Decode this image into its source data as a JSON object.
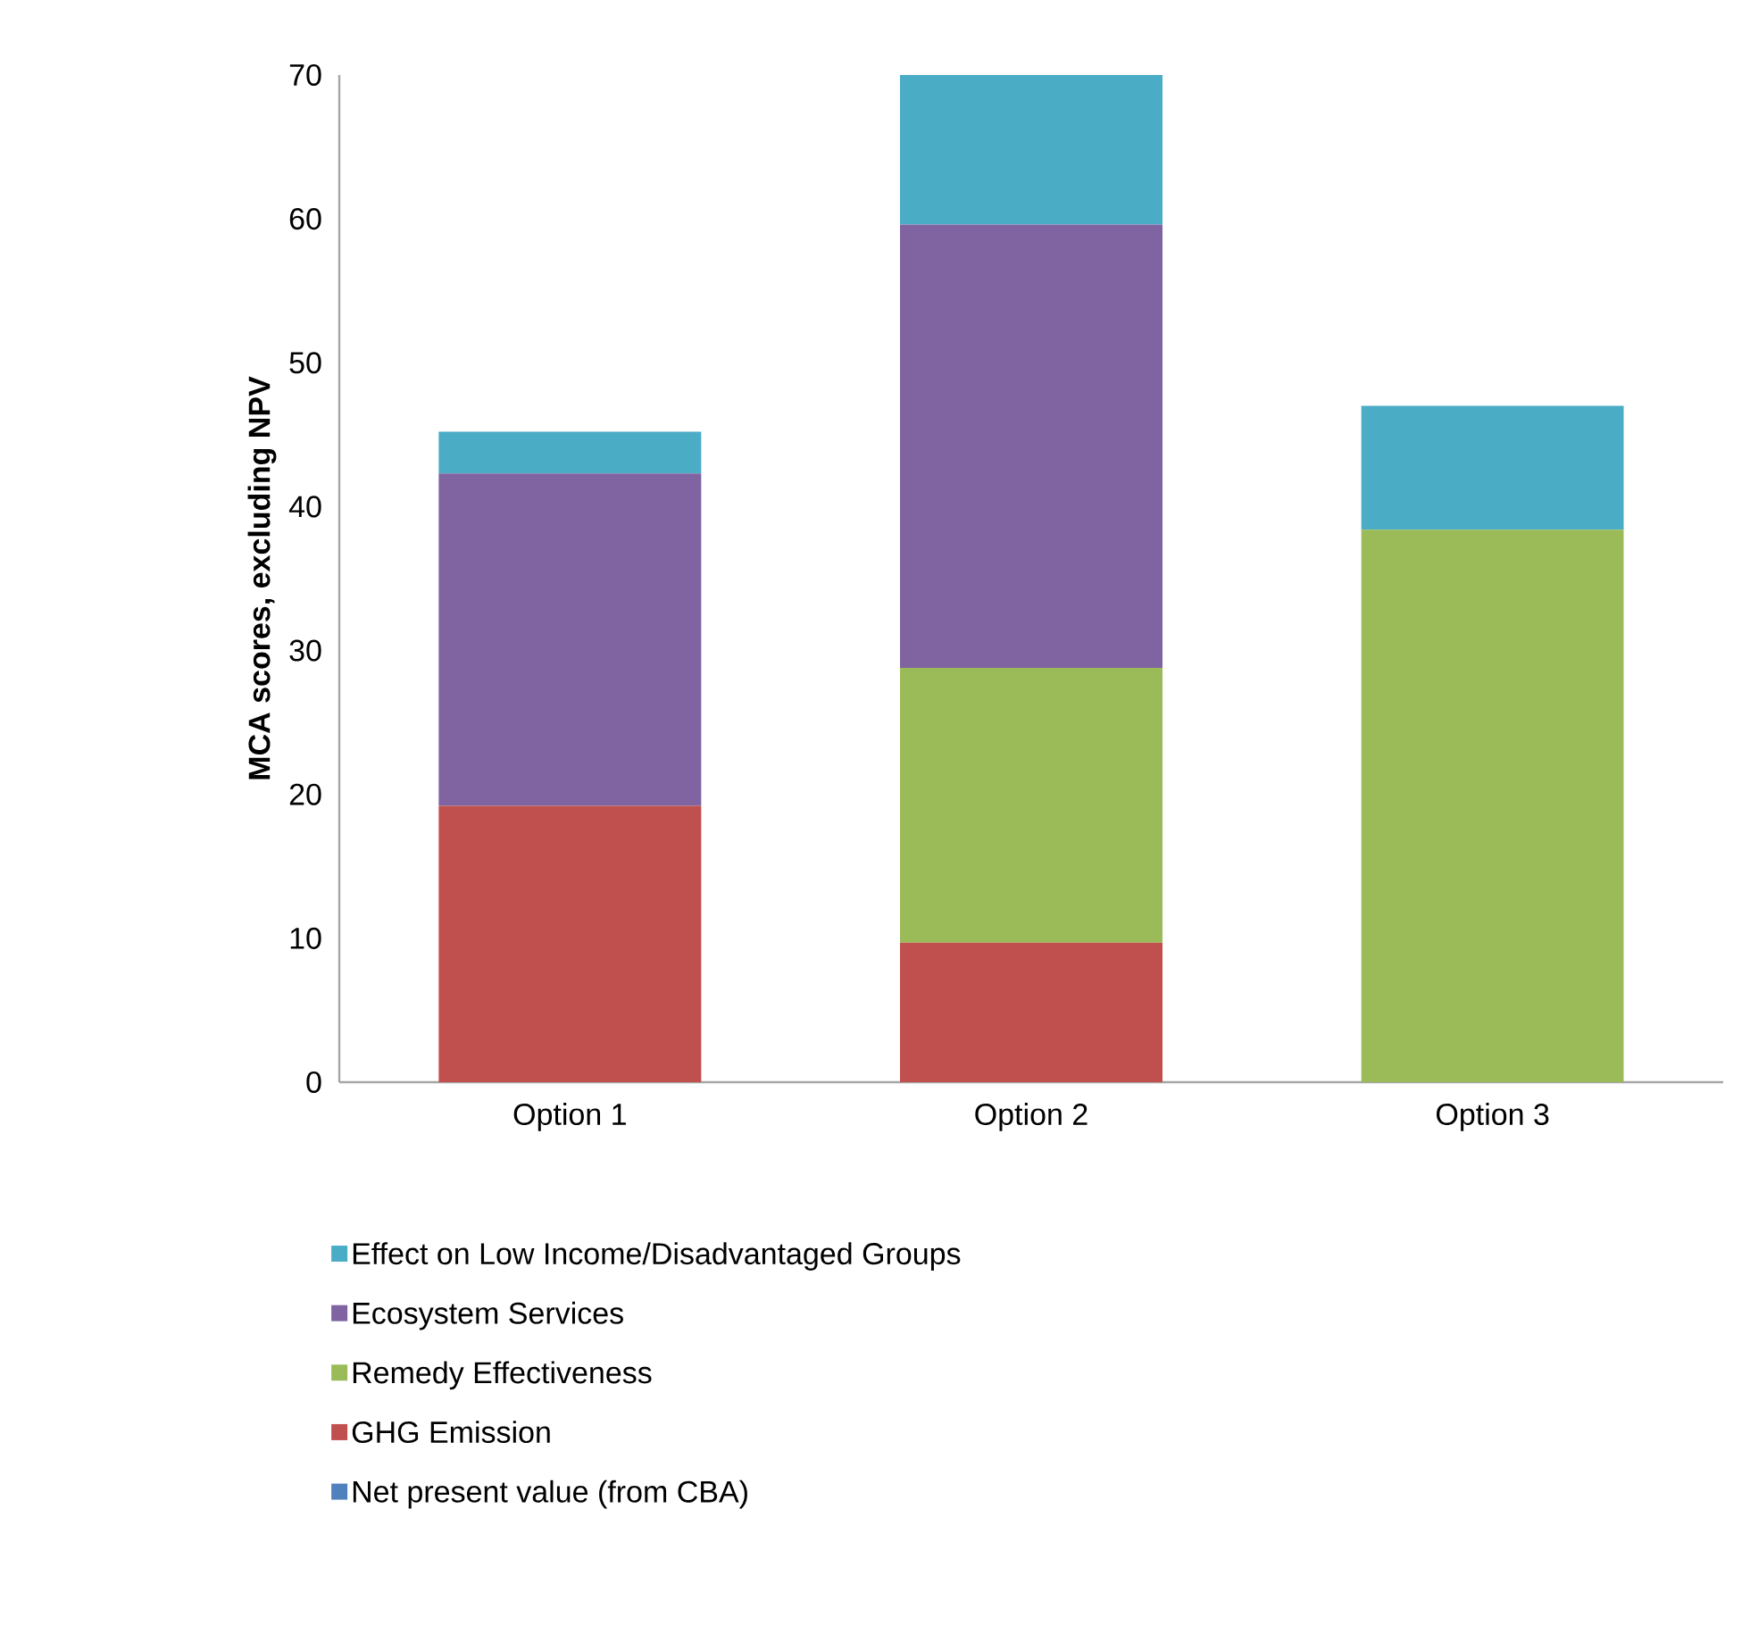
{
  "chart_data": {
    "type": "bar",
    "stacked": true,
    "ylabel": "MCA scores, excluding NPV",
    "categories": [
      "Option 1",
      "Option 2",
      "Option 3"
    ],
    "ylim": [
      0,
      70
    ],
    "yticks": [
      0,
      10,
      20,
      30,
      40,
      50,
      60,
      70
    ],
    "grid": false,
    "legend": "bottom",
    "series": [
      {
        "name": "Net present value (from CBA)",
        "color": "#4f81bd",
        "values": [
          0,
          0,
          0
        ]
      },
      {
        "name": "GHG Emission",
        "color": "#c0504d",
        "values": [
          19.2,
          9.7,
          0
        ]
      },
      {
        "name": "Remedy Effectiveness",
        "color": "#9bbb59",
        "values": [
          0,
          19.1,
          38.4
        ]
      },
      {
        "name": "Ecosystem Services",
        "color": "#8064a2",
        "values": [
          23.1,
          30.8,
          0
        ]
      },
      {
        "name": "Effect on Low Income/Disadvantaged Groups",
        "color": "#4bacc6",
        "values": [
          2.9,
          10.4,
          8.6
        ]
      }
    ]
  }
}
